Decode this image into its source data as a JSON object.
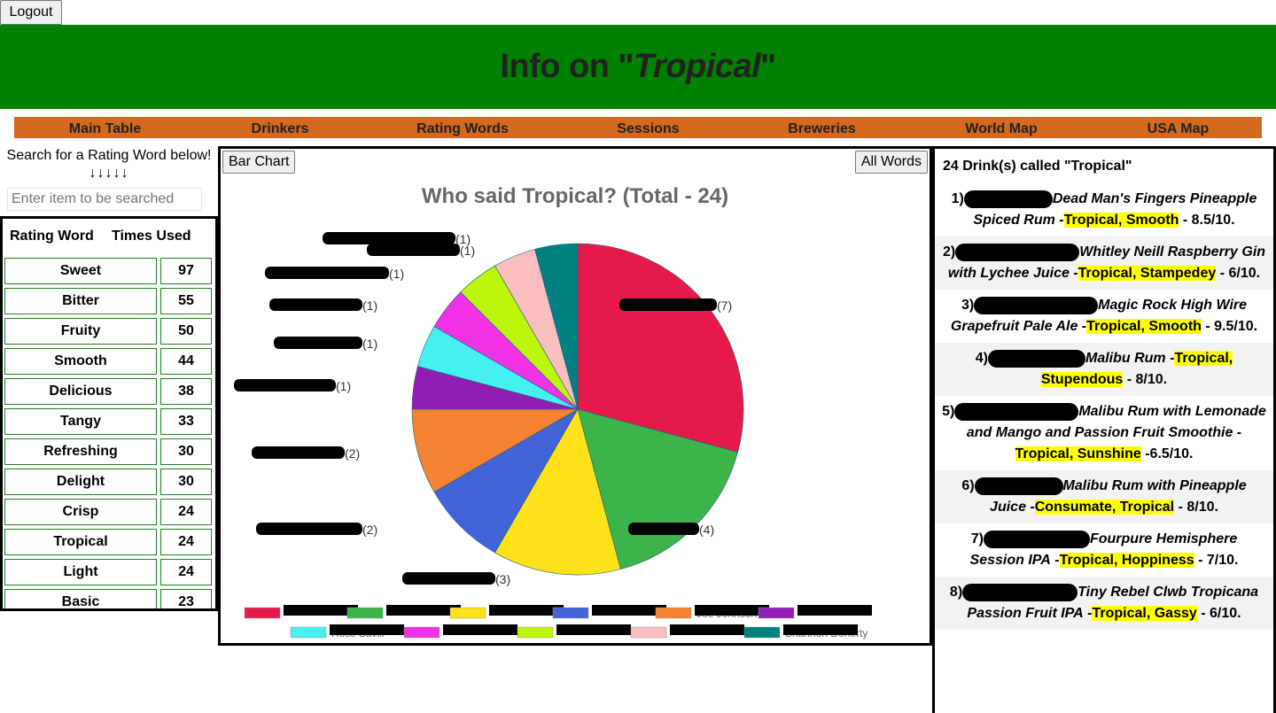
{
  "logout_label": "Logout",
  "header": {
    "prefix": "Info on \"",
    "word": "Tropical",
    "suffix": "\""
  },
  "nav": [
    "Main Table",
    "Drinkers",
    "Rating Words",
    "Sessions",
    "Breweries",
    "World Map",
    "USA Map"
  ],
  "search": {
    "caption": "Search for a Rating Word below!",
    "arrows": "↓↓↓↓↓",
    "placeholder": "Enter item to be searched"
  },
  "rating_table": {
    "headers": [
      "Rating Word",
      "Times Used"
    ],
    "rows": [
      {
        "word": "Sweet",
        "count": "97"
      },
      {
        "word": "Bitter",
        "count": "55"
      },
      {
        "word": "Fruity",
        "count": "50"
      },
      {
        "word": "Smooth",
        "count": "44"
      },
      {
        "word": "Delicious",
        "count": "38"
      },
      {
        "word": "Tangy",
        "count": "33"
      },
      {
        "word": "Refreshing",
        "count": "30"
      },
      {
        "word": "Delight",
        "count": "30"
      },
      {
        "word": "Crisp",
        "count": "24"
      },
      {
        "word": "Tropical",
        "count": "24"
      },
      {
        "word": "Light",
        "count": "24"
      },
      {
        "word": "Basic",
        "count": "23"
      }
    ]
  },
  "chart_buttons": {
    "bar_chart": "Bar Chart",
    "all_words": "All Words"
  },
  "chart_data": {
    "type": "pie",
    "title": "Who said Tropical? (Total - 24)",
    "values": [
      7,
      4,
      3,
      2,
      2,
      1,
      1,
      1,
      1,
      1,
      1
    ],
    "value_labels": [
      "(7)",
      "(4)",
      "(3)",
      "(2)",
      "(2)",
      "(1)",
      "(1)",
      "(1)",
      "(1)",
      "(1)",
      "(1)"
    ],
    "colors": [
      "#e6194b",
      "#3cb44b",
      "#ffe119",
      "#4363d8",
      "#f58231",
      "#911eb4",
      "#46f0f0",
      "#f032e6",
      "#bcf60c",
      "#fabebe",
      "#008080"
    ],
    "legend_visible_names": [
      "",
      "",
      "",
      "",
      "Joe Johnson",
      "",
      "Ross Savill",
      "",
      "",
      "",
      "Shannon Doherty"
    ],
    "legend": "bottom"
  },
  "drinks": {
    "title": "24 Drink(s) called \"Tropical\"",
    "items": [
      {
        "num": "1)",
        "name": "Dead Man's Fingers Pineapple Spiced Rum",
        "sep": " -",
        "words": "Tropical, Smooth",
        "rating": " - 8.5/10.",
        "mask": 100
      },
      {
        "num": "2)",
        "name": "Whitley Neill Raspberry Gin with Lychee Juice",
        "sep": " -",
        "words": "Tropical, Stampedey",
        "rating": " - 6/10.",
        "mask": 140
      },
      {
        "num": "3)",
        "name": "Magic Rock High Wire Grapefruit Pale Ale",
        "sep": " -",
        "words": "Tropical, Smooth",
        "rating": " - 9.5/10.",
        "mask": 140
      },
      {
        "num": "4)",
        "name": "Malibu Rum",
        "sep": " -",
        "words": "Tropical, Stupendous",
        "rating": " - 8/10.",
        "mask": 110
      },
      {
        "num": "5)",
        "name": "Malibu Rum with Lemonade and Mango and Passion Fruit Smoothie",
        "sep": " -",
        "words": "Tropical, Sunshine",
        "rating": " -6.5/10.",
        "mask": 140
      },
      {
        "num": "6)",
        "name": "Malibu Rum with Pineapple Juice",
        "sep": " -",
        "words": "Consumate, Tropical",
        "rating": " - 8/10.",
        "mask": 100
      },
      {
        "num": "7)",
        "name": "Fourpure Hemisphere Session IPA",
        "sep": " -",
        "words": "Tropical, Hoppiness",
        "rating": " - 7/10.",
        "mask": 120
      },
      {
        "num": "8)",
        "name": "Tiny Rebel Clwb Tropicana Passion Fruit IPA",
        "sep": " -",
        "words": "Tropical, Gassy",
        "rating": " - 6/10.",
        "mask": 130
      }
    ]
  }
}
